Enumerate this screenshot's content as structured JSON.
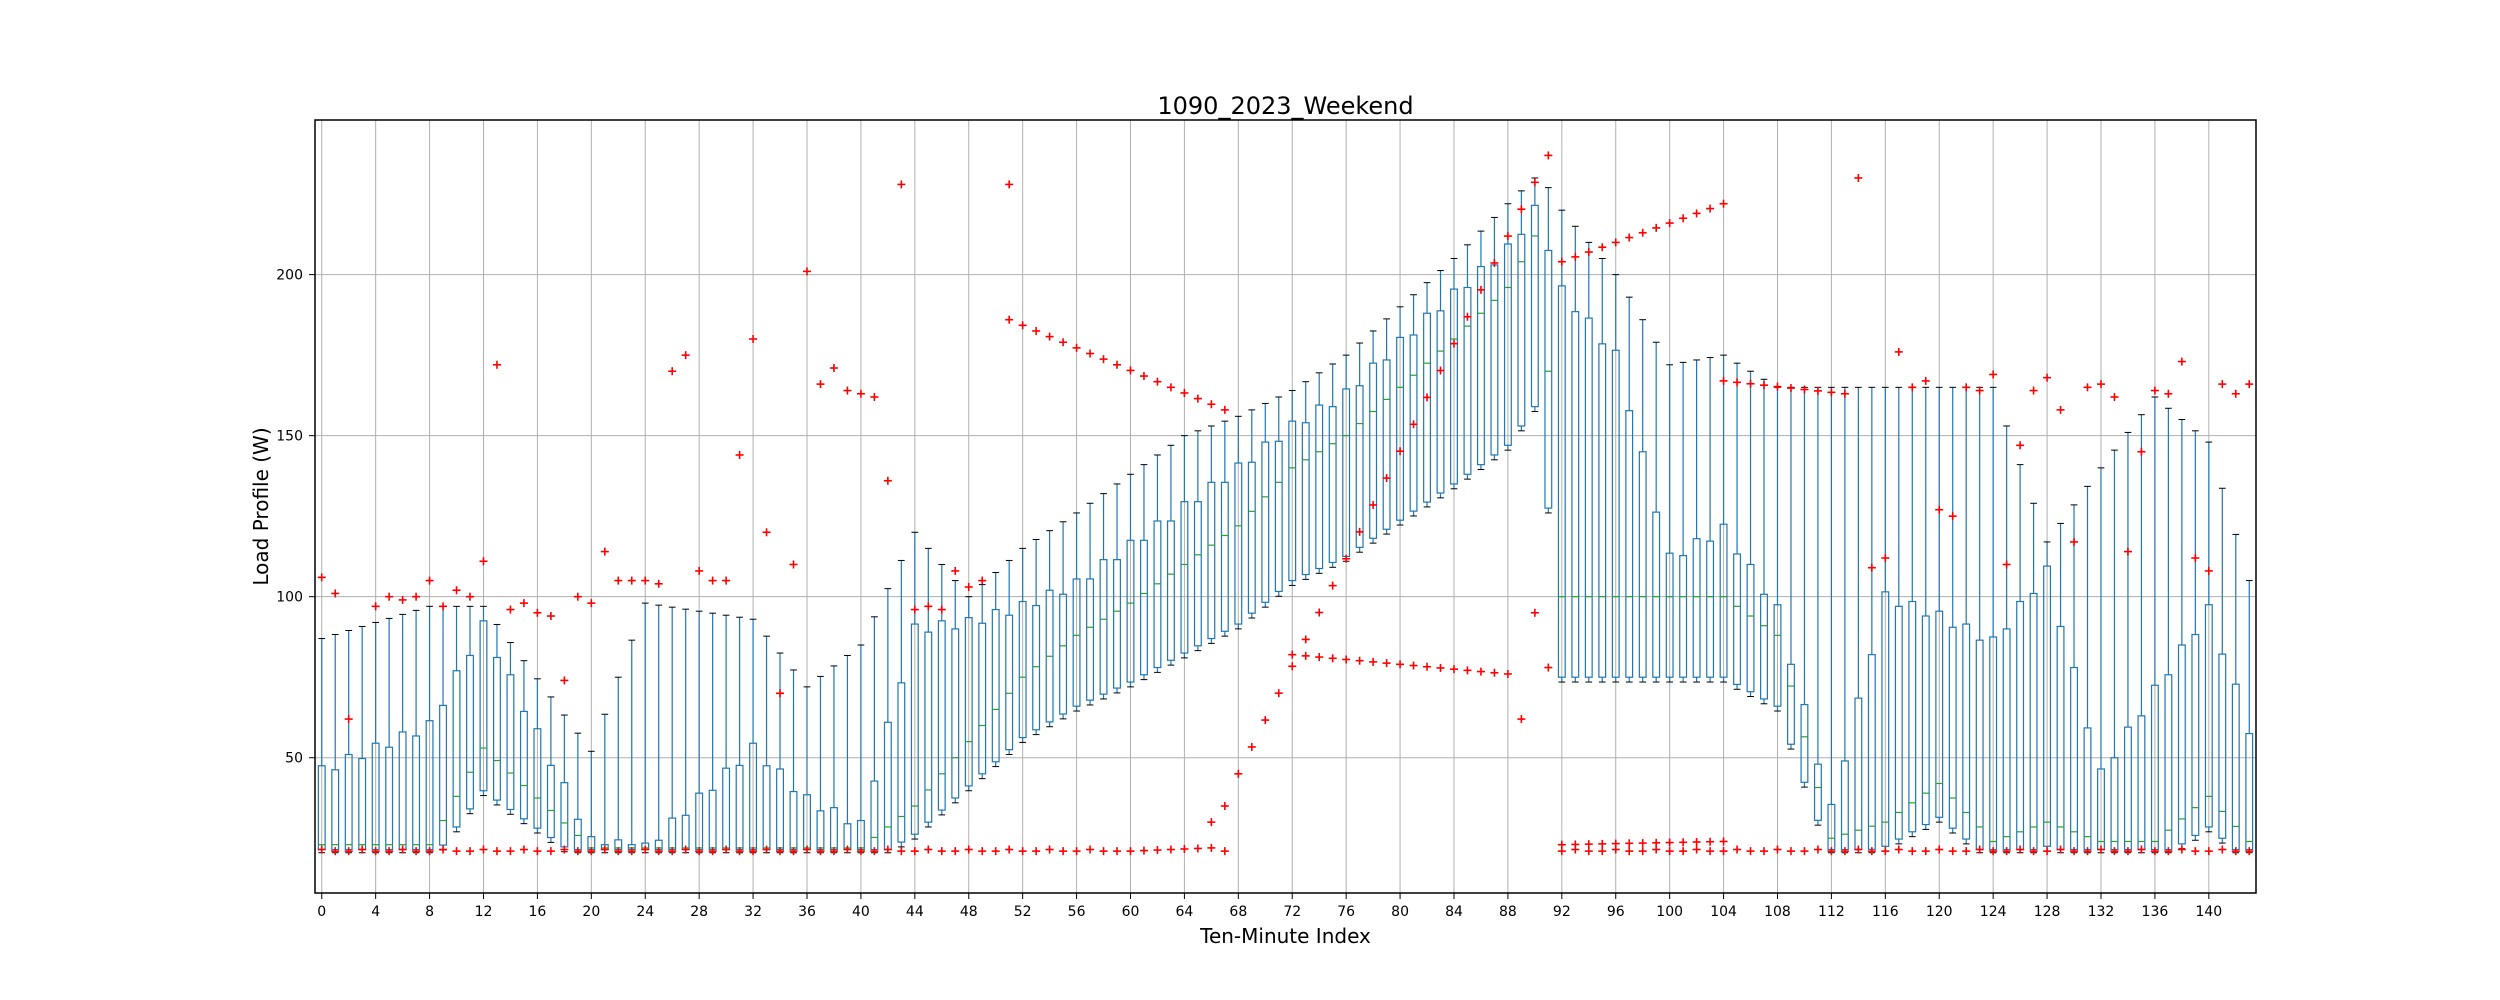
{
  "chart_data": {
    "type": "box",
    "title": "1090_2023_Weekend",
    "xlabel": "Ten-Minute Index",
    "ylabel": "Load Profile (W)",
    "xlim": [
      -0.5,
      143.5
    ],
    "ylim": [
      8,
      248
    ],
    "xticks": [
      0,
      4,
      8,
      12,
      16,
      20,
      24,
      28,
      32,
      36,
      40,
      44,
      48,
      52,
      56,
      60,
      64,
      68,
      72,
      76,
      80,
      84,
      88,
      92,
      96,
      100,
      104,
      108,
      112,
      116,
      120,
      124,
      128,
      132,
      136,
      140
    ],
    "yticks": [
      50,
      100,
      150,
      200
    ],
    "grid": true,
    "colors": {
      "box": "#1f77b4",
      "median": "#2ca02c",
      "outlier": "#ff0000",
      "grid": "#b0b0b0"
    },
    "anchors": {
      "x": [
        0,
        8,
        12,
        20,
        24,
        32,
        36,
        40,
        44,
        48,
        52,
        56,
        60,
        64,
        68,
        72,
        76,
        80,
        84,
        88,
        90,
        91,
        92,
        96,
        100,
        104,
        108,
        112,
        116,
        120,
        124,
        128,
        132,
        136,
        140,
        143
      ],
      "q3": [
        46,
        60,
        91,
        24,
        22,
        53,
        37,
        29,
        90,
        92,
        97,
        104,
        116,
        128,
        140,
        153,
        163,
        179,
        194,
        208,
        220,
        209,
        195,
        175,
        112,
        121,
        96,
        34,
        100,
        94,
        86,
        108,
        45,
        71,
        96,
        59
      ],
      "whisker_high": [
        87,
        97,
        97,
        52,
        98,
        93,
        72,
        85,
        120,
        100,
        115,
        126,
        138,
        150,
        156,
        164,
        175,
        190,
        205,
        222,
        230,
        227,
        220,
        200,
        172,
        175,
        165,
        165,
        165,
        165,
        165,
        117,
        140,
        162,
        148,
        105
      ],
      "median": [
        23,
        23,
        53,
        22,
        22,
        22,
        22,
        22,
        35,
        55,
        75,
        88,
        98,
        110,
        122,
        140,
        150,
        165,
        180,
        196,
        212,
        170,
        100,
        100,
        100,
        100,
        88,
        25,
        30,
        42,
        24,
        30,
        24,
        24,
        38,
        24
      ]
    },
    "outlier_lines": [
      {
        "from": [
          51,
          186
        ],
        "to": [
          67,
          158
        ],
        "step": 1
      },
      {
        "from": [
          68,
          45
        ],
        "to": [
          91,
          237
        ],
        "step": 1
      },
      {
        "from": [
          72,
          82
        ],
        "to": [
          88,
          76
        ],
        "step": 1
      },
      {
        "from": [
          92,
          204
        ],
        "to": [
          104,
          222
        ],
        "step": 1
      },
      {
        "from": [
          104,
          167
        ],
        "to": [
          113,
          163
        ],
        "step": 1
      },
      {
        "from": [
          60,
          21
        ],
        "to": [
          66,
          22
        ],
        "step": 1
      },
      {
        "from": [
          92,
          23
        ],
        "to": [
          104,
          24
        ],
        "step": 1
      }
    ],
    "outliers": [
      [
        0,
        106
      ],
      [
        1,
        101
      ],
      [
        2,
        62
      ],
      [
        4,
        97
      ],
      [
        5,
        100
      ],
      [
        6,
        99
      ],
      [
        7,
        100
      ],
      [
        8,
        105
      ],
      [
        9,
        97
      ],
      [
        10,
        102
      ],
      [
        11,
        100
      ],
      [
        12,
        111
      ],
      [
        13,
        172
      ],
      [
        14,
        96
      ],
      [
        15,
        98
      ],
      [
        16,
        95
      ],
      [
        17,
        94
      ],
      [
        18,
        74
      ],
      [
        19,
        100
      ],
      [
        20,
        98
      ],
      [
        21,
        114
      ],
      [
        22,
        105
      ],
      [
        23,
        105
      ],
      [
        24,
        105
      ],
      [
        25,
        104
      ],
      [
        26,
        170
      ],
      [
        27,
        175
      ],
      [
        28,
        108
      ],
      [
        29,
        105
      ],
      [
        30,
        105
      ],
      [
        31,
        144
      ],
      [
        32,
        180
      ],
      [
        33,
        120
      ],
      [
        34,
        70
      ],
      [
        35,
        110
      ],
      [
        36,
        201
      ],
      [
        37,
        166
      ],
      [
        38,
        171
      ],
      [
        39,
        164
      ],
      [
        40,
        163
      ],
      [
        41,
        162
      ],
      [
        42,
        136
      ],
      [
        43,
        228
      ],
      [
        44,
        96
      ],
      [
        45,
        97
      ],
      [
        46,
        96
      ],
      [
        47,
        108
      ],
      [
        48,
        103
      ],
      [
        49,
        105
      ],
      [
        51,
        228
      ],
      [
        66,
        30
      ],
      [
        67,
        35
      ],
      [
        89,
        62
      ],
      [
        90,
        95
      ],
      [
        91,
        78
      ],
      [
        114,
        230
      ],
      [
        115,
        109
      ],
      [
        116,
        112
      ],
      [
        117,
        176
      ],
      [
        118,
        165
      ],
      [
        119,
        167
      ],
      [
        120,
        127
      ],
      [
        121,
        125
      ],
      [
        122,
        165
      ],
      [
        123,
        164
      ],
      [
        124,
        169
      ],
      [
        125,
        110
      ],
      [
        126,
        147
      ],
      [
        127,
        164
      ],
      [
        128,
        168
      ],
      [
        129,
        158
      ],
      [
        130,
        117
      ],
      [
        131,
        165
      ],
      [
        132,
        166
      ],
      [
        133,
        162
      ],
      [
        134,
        114
      ],
      [
        135,
        145
      ],
      [
        136,
        164
      ],
      [
        137,
        163
      ],
      [
        138,
        173
      ],
      [
        139,
        112
      ],
      [
        140,
        108
      ],
      [
        141,
        166
      ],
      [
        142,
        163
      ],
      [
        143,
        166
      ]
    ]
  }
}
